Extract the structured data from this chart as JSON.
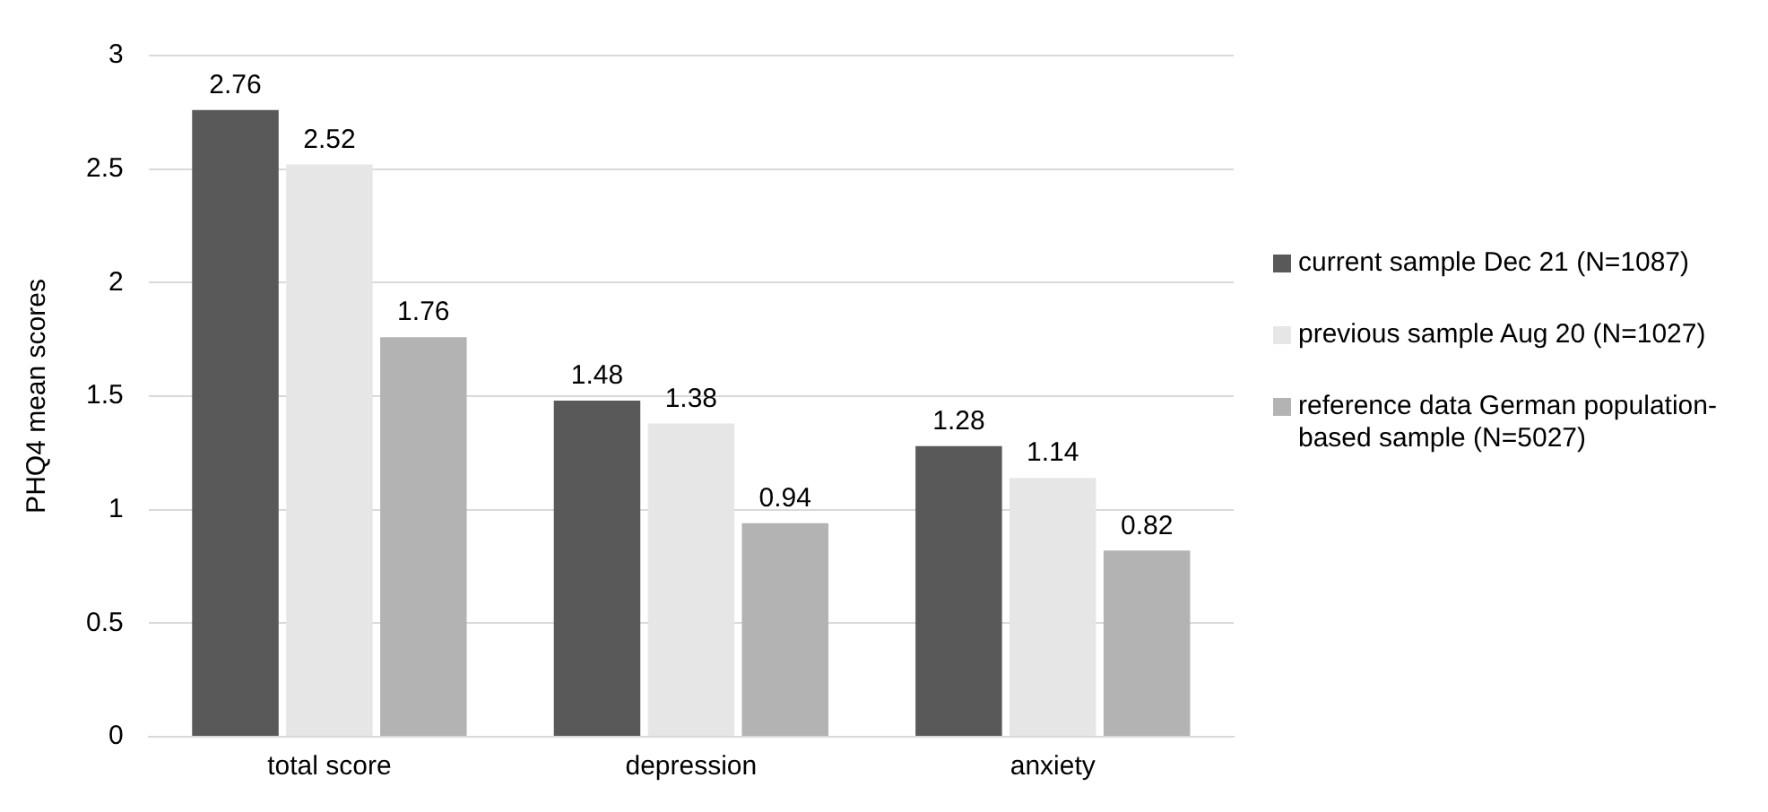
{
  "chart_data": {
    "type": "bar",
    "ylabel": "PHQ4 mean scores",
    "categories": [
      "total score",
      "depression",
      "anxiety"
    ],
    "series": [
      {
        "name": "current sample Dec 21 (N=1087)",
        "color": "#595959",
        "values": [
          2.76,
          1.48,
          1.28
        ]
      },
      {
        "name": "previous sample Aug 20 (N=1027)",
        "color": "#e6e6e6",
        "values": [
          2.52,
          1.38,
          1.14
        ]
      },
      {
        "name": "reference data German population-based sample (N=5027)",
        "color": "#b3b3b3",
        "values": [
          1.76,
          0.94,
          0.82
        ]
      }
    ],
    "ylim": [
      0,
      3
    ],
    "yticks": [
      0,
      0.5,
      1,
      1.5,
      2,
      2.5,
      3
    ],
    "grid": "y",
    "legend": "right",
    "data_labels": true
  }
}
